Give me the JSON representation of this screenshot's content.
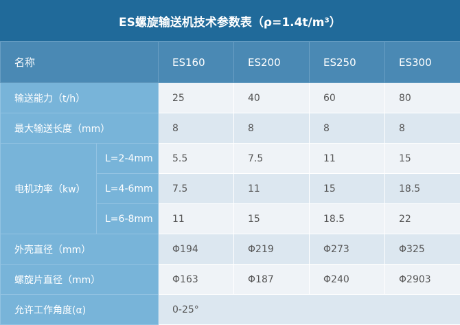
{
  "title": "ES螺旋输送机技术参数表（ρ=1.4t/m³）",
  "header": {
    "name": "名称",
    "models": [
      "ES160",
      "ES200",
      "ES250",
      "ES300"
    ]
  },
  "rows": [
    {
      "label": "输送能力（t/h）",
      "values": [
        "25",
        "40",
        "60",
        "80"
      ]
    },
    {
      "label": "最大输送长度（mm）",
      "values": [
        "8",
        "8",
        "8",
        "8"
      ]
    }
  ],
  "power": {
    "label": "电机功率（kw）",
    "sub": [
      {
        "label": "L=2-4mm",
        "values": [
          "5.5",
          "7.5",
          "11",
          "15"
        ]
      },
      {
        "label": "L=4-6mm",
        "values": [
          "7.5",
          "11",
          "15",
          "18.5"
        ]
      },
      {
        "label": "L=6-8mm",
        "values": [
          "11",
          "15",
          "18.5",
          "22"
        ]
      }
    ]
  },
  "rows2": [
    {
      "label": "外壳直径（mm）",
      "values": [
        "Φ194",
        "Φ219",
        "Φ273",
        "Φ325"
      ]
    },
    {
      "label": "螺旋片直径（mm）",
      "values": [
        "Φ163",
        "Φ187",
        "Φ240",
        "Φ2903"
      ]
    }
  ],
  "angle": {
    "label": "允许工作角度(α)",
    "value": "0-25°"
  },
  "colors": {
    "title_bg": "#206a9a",
    "header_bg": "#4a89b4",
    "label_bg": "#78b4d9",
    "row_light": "#eff3f7",
    "row_dark": "#dce7f0"
  }
}
